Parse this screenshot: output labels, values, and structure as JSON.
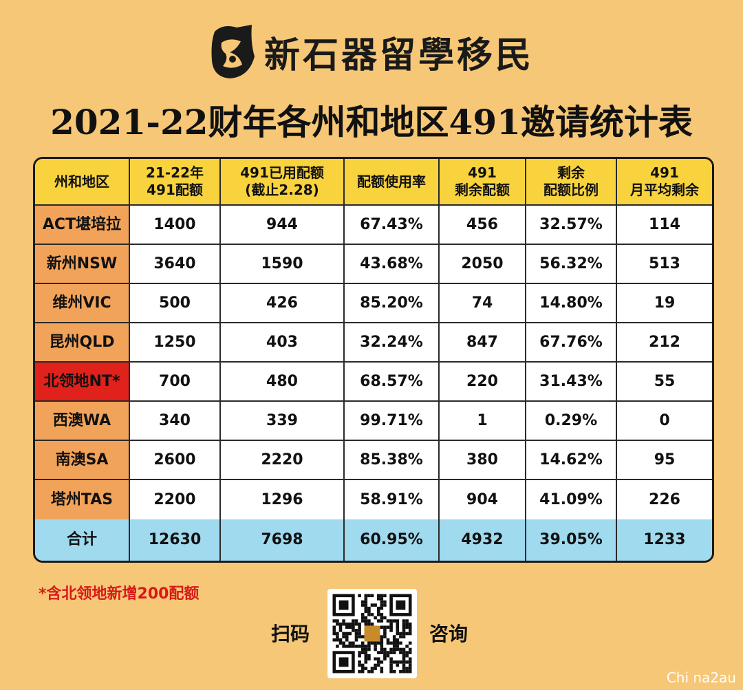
{
  "brand": {
    "name": "新石器留學移民"
  },
  "title": "2021-22财年各州和地区491邀请统计表",
  "table": {
    "headers": [
      [
        "州和地区"
      ],
      [
        "21-22年",
        "491配额"
      ],
      [
        "491已用配额",
        "(截止2.28)"
      ],
      [
        "配额使用率"
      ],
      [
        "491",
        "剩余配额"
      ],
      [
        "剩余",
        "配额比例"
      ],
      [
        "491",
        "月平均剩余"
      ]
    ],
    "rows": [
      {
        "region": "ACT堪培拉",
        "quota": "1400",
        "used": "944",
        "rate": "67.43%",
        "remaining": "456",
        "remaining_ratio": "32.57%",
        "monthly_avg": "114",
        "highlight": false
      },
      {
        "region": "新州NSW",
        "quota": "3640",
        "used": "1590",
        "rate": "43.68%",
        "remaining": "2050",
        "remaining_ratio": "56.32%",
        "monthly_avg": "513",
        "highlight": false
      },
      {
        "region": "维州VIC",
        "quota": "500",
        "used": "426",
        "rate": "85.20%",
        "remaining": "74",
        "remaining_ratio": "14.80%",
        "monthly_avg": "19",
        "highlight": false
      },
      {
        "region": "昆州QLD",
        "quota": "1250",
        "used": "403",
        "rate": "32.24%",
        "remaining": "847",
        "remaining_ratio": "67.76%",
        "monthly_avg": "212",
        "highlight": false
      },
      {
        "region": "北领地NT*",
        "quota": "700",
        "used": "480",
        "rate": "68.57%",
        "remaining": "220",
        "remaining_ratio": "31.43%",
        "monthly_avg": "55",
        "highlight": true
      },
      {
        "region": "西澳WA",
        "quota": "340",
        "used": "339",
        "rate": "99.71%",
        "remaining": "1",
        "remaining_ratio": "0.29%",
        "monthly_avg": "0",
        "highlight": false
      },
      {
        "region": "南澳SA",
        "quota": "2600",
        "used": "2220",
        "rate": "85.38%",
        "remaining": "380",
        "remaining_ratio": "14.62%",
        "monthly_avg": "95",
        "highlight": false
      },
      {
        "region": "塔州TAS",
        "quota": "2200",
        "used": "1296",
        "rate": "58.91%",
        "remaining": "904",
        "remaining_ratio": "41.09%",
        "monthly_avg": "226",
        "highlight": false
      }
    ],
    "total": {
      "region": "合计",
      "quota": "12630",
      "used": "7698",
      "rate": "60.95%",
      "remaining": "4932",
      "remaining_ratio": "39.05%",
      "monthly_avg": "1233"
    }
  },
  "footnote": "*含北领地新增200配额",
  "scan": {
    "left": "扫码",
    "right": "咨询"
  },
  "credit": "Chi na2au",
  "colors": {
    "background": "#f6c776",
    "header": "#f8d33d",
    "region_cell": "#f2a35a",
    "region_highlight": "#e0211c",
    "total_row": "#9fdaef",
    "footnote": "#d8191a"
  },
  "icons": [
    "brand-logo-icon",
    "qr-code"
  ]
}
